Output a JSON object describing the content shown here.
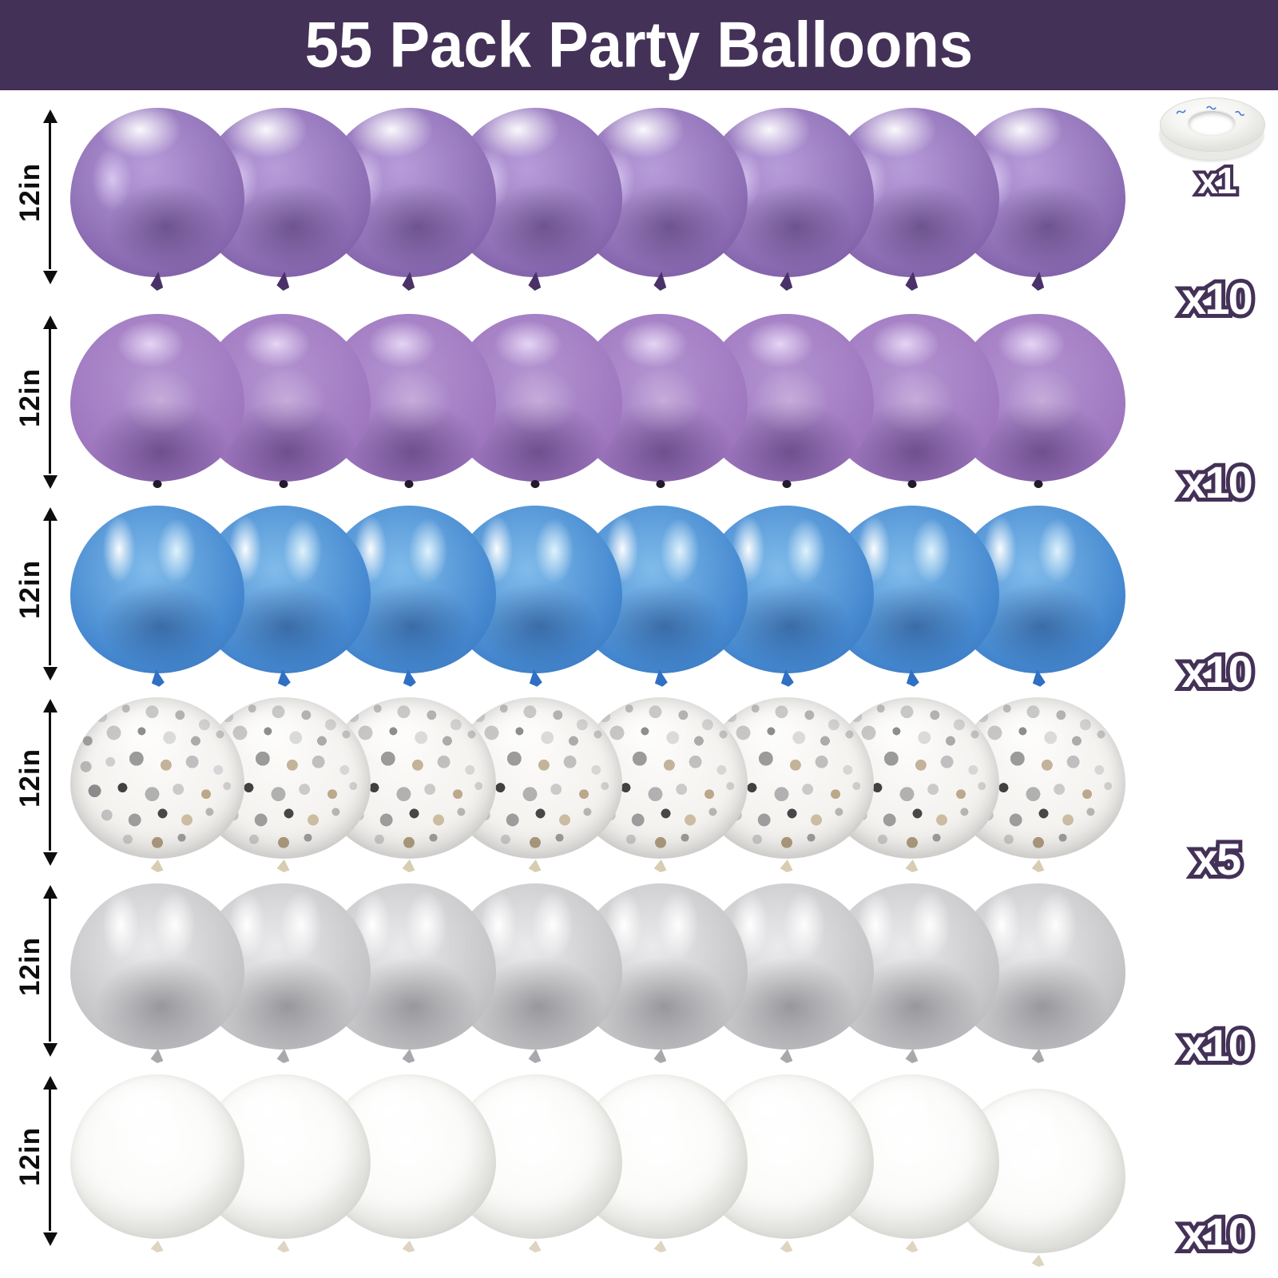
{
  "header": {
    "title": "55 Pack Party Balloons",
    "bg_color": "#443157",
    "text_color": "#ffffff"
  },
  "outline_color": "#443157",
  "ribbon": {
    "name": "balloon ribbon roll",
    "count_label": "x1"
  },
  "rows": [
    {
      "name": "chrome-purple-balloons",
      "style": "chrome-purple",
      "size_label": "12in",
      "count_label": "x10",
      "visible_balloons": 8,
      "base_color": "#8d6eb4"
    },
    {
      "name": "matte-purple-balloons",
      "style": "matte-purple",
      "size_label": "12in",
      "count_label": "x10",
      "visible_balloons": 8,
      "base_color": "#9d75be"
    },
    {
      "name": "chrome-blue-balloons",
      "style": "chrome-blue",
      "size_label": "12in",
      "count_label": "x10",
      "visible_balloons": 8,
      "base_color": "#4689d0"
    },
    {
      "name": "silver-confetti-balloons",
      "style": "confetti",
      "size_label": "12in",
      "count_label": "x5",
      "visible_balloons": 8,
      "base_color": "#f0eeeb"
    },
    {
      "name": "chrome-silver-balloons",
      "style": "chrome-silver",
      "size_label": "12in",
      "count_label": "x10",
      "visible_balloons": 8,
      "base_color": "#c6c6c9"
    },
    {
      "name": "white-balloons",
      "style": "white",
      "size_label": "12in",
      "count_label": "x10",
      "visible_balloons": 8,
      "base_color": "#f8f8f6"
    }
  ]
}
